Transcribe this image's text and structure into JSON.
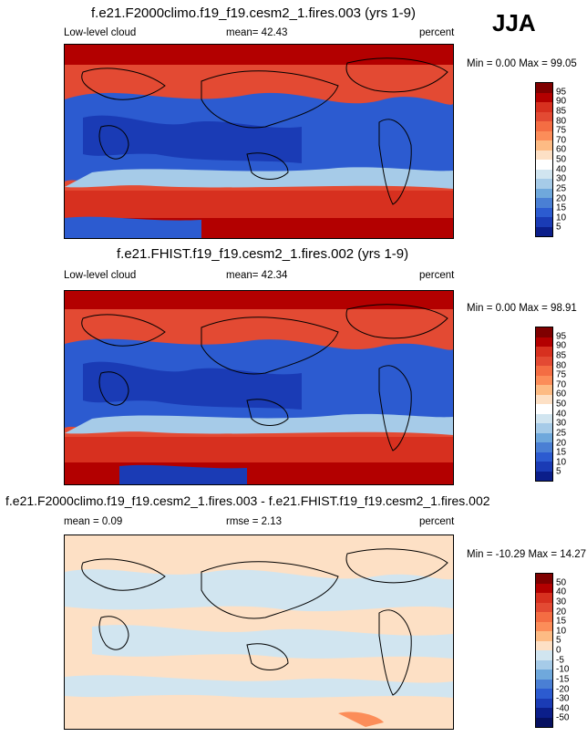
{
  "season": "JJA",
  "panels": [
    {
      "title": "f.e21.F2000climo.f19_f19.cesm2_1.fires.003 (yrs 1-9)",
      "left_label": "Low-level cloud",
      "mid_label": "mean=  42.43",
      "right_label": "percent",
      "minmax": "Min =   0.00 Max =  99.05",
      "ticks": [
        "95",
        "90",
        "85",
        "80",
        "75",
        "70",
        "60",
        "50",
        "40",
        "30",
        "25",
        "20",
        "15",
        "10",
        "5"
      ],
      "colors": [
        "#7f0000",
        "#b30000",
        "#d7301f",
        "#e34a33",
        "#f46d43",
        "#fc8d59",
        "#fdbb84",
        "#fde0c5",
        "#ffffff",
        "#d1e5f0",
        "#a6cbe8",
        "#6fa8dc",
        "#4a7fd4",
        "#2c5bd0",
        "#1a3bb5",
        "#0b1e8a"
      ]
    },
    {
      "title": "f.e21.FHIST.f19_f19.cesm2_1.fires.002 (yrs 1-9)",
      "left_label": "Low-level cloud",
      "mid_label": "mean=  42.34",
      "right_label": "percent",
      "minmax": "Min =   0.00 Max =  98.91",
      "ticks": [
        "95",
        "90",
        "85",
        "80",
        "75",
        "70",
        "60",
        "50",
        "40",
        "30",
        "25",
        "20",
        "15",
        "10",
        "5"
      ],
      "colors": [
        "#7f0000",
        "#b30000",
        "#d7301f",
        "#e34a33",
        "#f46d43",
        "#fc8d59",
        "#fdbb84",
        "#fde0c5",
        "#ffffff",
        "#d1e5f0",
        "#a6cbe8",
        "#6fa8dc",
        "#4a7fd4",
        "#2c5bd0",
        "#1a3bb5",
        "#0b1e8a"
      ]
    },
    {
      "title": "f.e21.F2000climo.f19_f19.cesm2_1.fires.003 - f.e21.FHIST.f19_f19.cesm2_1.fires.002",
      "left_label": "mean =   0.09",
      "mid_label": "rmse =   2.13",
      "right_label": "percent",
      "minmax": "Min = -10.29 Max =  14.27",
      "ticks": [
        "50",
        "40",
        "30",
        "20",
        "15",
        "10",
        "5",
        "0",
        "-5",
        "-10",
        "-15",
        "-20",
        "-30",
        "-40",
        "-50"
      ],
      "colors": [
        "#7f0000",
        "#b30000",
        "#d7301f",
        "#e34a33",
        "#f46d43",
        "#fc8d59",
        "#fdbb84",
        "#fde0c5",
        "#d1e5f0",
        "#a6cbe8",
        "#6fa8dc",
        "#4a7fd4",
        "#2c5bd0",
        "#1a3bb5",
        "#0b1e8a",
        "#061060"
      ]
    }
  ]
}
